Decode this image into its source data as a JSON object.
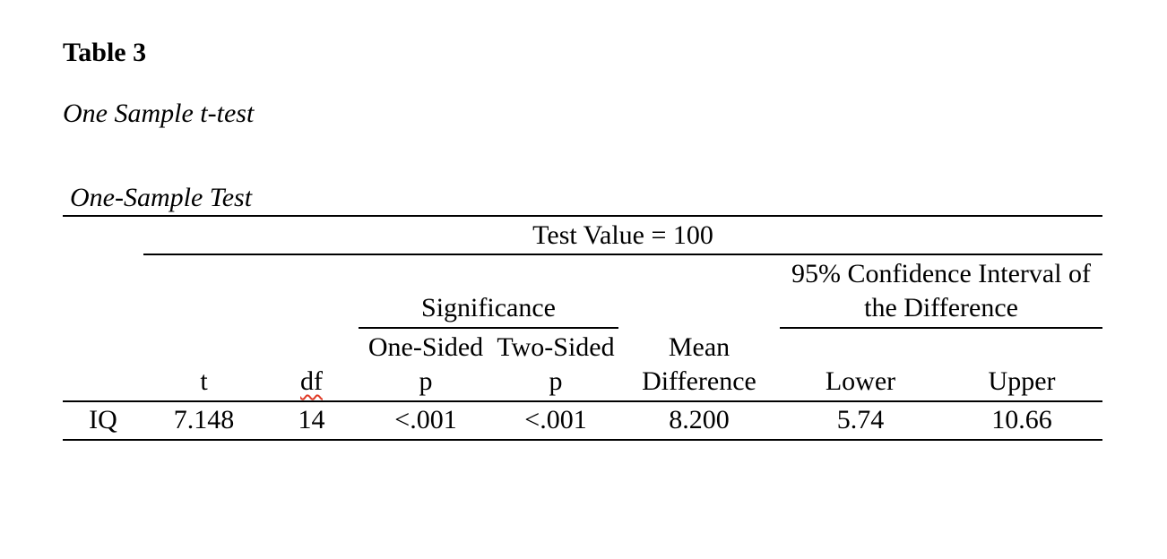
{
  "document": {
    "table_number": "Table 3",
    "caption": "One Sample t-test"
  },
  "table": {
    "title": "One-Sample Test",
    "spanner_label": "Test Value = 100",
    "group_headers": {
      "significance": "Significance",
      "confidence_interval": "95% Confidence Interval of\nthe Difference"
    },
    "column_headers": {
      "t": "t",
      "df": "df",
      "one_sided_p": "One-Sided\np",
      "two_sided_p": "Two-Sided\np",
      "mean_difference": "Mean\nDifference",
      "lower": "Lower",
      "upper": "Upper"
    },
    "rows": [
      {
        "label": "IQ",
        "t": "7.148",
        "df": "14",
        "one_sided_p": "<.001",
        "two_sided_p": "<.001",
        "mean_difference": "8.200",
        "lower": "5.74",
        "upper": "10.66"
      }
    ]
  },
  "colors": {
    "text": "#000000",
    "rule": "#000000",
    "spellcheck_underline": "#e03c28",
    "background": "#ffffff"
  }
}
